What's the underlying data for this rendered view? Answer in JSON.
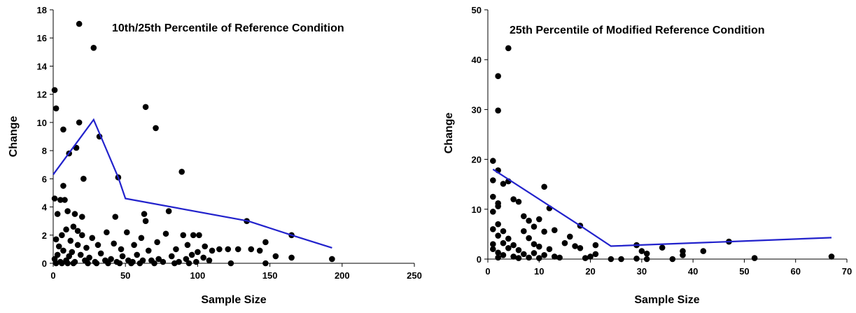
{
  "chart_data": [
    {
      "type": "scatter",
      "title": "10th/25th Percentile of Reference Condition",
      "xlabel": "Sample Size",
      "ylabel": "Change",
      "xlim": [
        0,
        250
      ],
      "ylim": [
        0,
        18
      ],
      "xticks": [
        0,
        50,
        100,
        150,
        200,
        250
      ],
      "yticks": [
        0,
        2,
        4,
        6,
        8,
        10,
        12,
        14,
        16,
        18
      ],
      "grid": false,
      "colors": {
        "points": "#000000",
        "line": "#2222cc"
      },
      "points": [
        [
          1,
          12.3
        ],
        [
          2,
          11
        ],
        [
          18,
          17
        ],
        [
          28,
          15.3
        ],
        [
          64,
          11.1
        ],
        [
          71,
          9.6
        ],
        [
          18,
          10
        ],
        [
          7,
          9.5
        ],
        [
          32,
          9
        ],
        [
          11,
          7.8
        ],
        [
          16,
          8.2
        ],
        [
          89,
          6.5
        ],
        [
          21,
          6
        ],
        [
          45,
          6.1
        ],
        [
          7,
          5.5
        ],
        [
          1,
          4.6
        ],
        [
          5,
          4.5
        ],
        [
          8,
          4.5
        ],
        [
          3,
          3.5
        ],
        [
          10,
          3.7
        ],
        [
          15,
          3.5
        ],
        [
          20,
          3.3
        ],
        [
          43,
          3.3
        ],
        [
          63,
          3.5
        ],
        [
          80,
          3.7
        ],
        [
          64,
          3
        ],
        [
          134,
          3
        ],
        [
          165,
          2
        ],
        [
          193,
          0.3
        ],
        [
          2,
          1.7
        ],
        [
          4,
          1.2
        ],
        [
          6,
          2
        ],
        [
          9,
          2.4
        ],
        [
          12,
          1.6
        ],
        [
          14,
          2.6
        ],
        [
          17,
          2.3
        ],
        [
          20,
          2
        ],
        [
          23,
          1.1
        ],
        [
          27,
          1.8
        ],
        [
          31,
          1.3
        ],
        [
          37,
          2.2
        ],
        [
          42,
          1.4
        ],
        [
          47,
          1
        ],
        [
          51,
          2.2
        ],
        [
          56,
          1.3
        ],
        [
          61,
          1.8
        ],
        [
          66,
          0.9
        ],
        [
          72,
          1.5
        ],
        [
          78,
          2.1
        ],
        [
          85,
          1
        ],
        [
          90,
          2
        ],
        [
          93,
          1.3
        ],
        [
          97,
          2
        ],
        [
          101,
          2
        ],
        [
          105,
          1.2
        ],
        [
          110,
          0.9
        ],
        [
          115,
          1
        ],
        [
          121,
          1
        ],
        [
          128,
          1
        ],
        [
          137,
          1
        ],
        [
          143,
          0.9
        ],
        [
          147,
          1.5
        ],
        [
          154,
          0.5
        ],
        [
          165,
          0.4
        ],
        [
          123,
          0
        ],
        [
          147,
          0
        ],
        [
          1,
          0.3
        ],
        [
          3,
          0.6
        ],
        [
          5,
          0.1
        ],
        [
          7,
          0.9
        ],
        [
          9,
          0.2
        ],
        [
          11,
          0.5
        ],
        [
          13,
          0.8
        ],
        [
          15,
          0.1
        ],
        [
          17,
          1.3
        ],
        [
          19,
          0.6
        ],
        [
          22,
          0.2
        ],
        [
          25,
          0.4
        ],
        [
          29,
          0.1
        ],
        [
          33,
          0.7
        ],
        [
          36,
          0.2
        ],
        [
          40,
          0.3
        ],
        [
          44,
          0.1
        ],
        [
          48,
          0.5
        ],
        [
          52,
          0.2
        ],
        [
          55,
          0.1
        ],
        [
          58,
          0.6
        ],
        [
          62,
          0.2
        ],
        [
          68,
          0.2
        ],
        [
          73,
          0.3
        ],
        [
          76,
          0.1
        ],
        [
          82,
          0.5
        ],
        [
          87,
          0.1
        ],
        [
          92,
          0.3
        ],
        [
          96,
          0.6
        ],
        [
          99,
          0.1
        ],
        [
          104,
          0.4
        ],
        [
          108,
          0.2
        ],
        [
          2,
          0
        ],
        [
          6,
          0
        ],
        [
          10,
          0
        ],
        [
          14,
          0
        ],
        [
          24,
          0
        ],
        [
          30,
          0
        ],
        [
          38,
          0
        ],
        [
          46,
          0
        ],
        [
          54,
          0
        ],
        [
          60,
          0
        ],
        [
          70,
          0
        ],
        [
          84,
          0
        ],
        [
          94,
          0
        ],
        [
          100,
          0.8
        ]
      ],
      "line": [
        [
          0,
          6.3
        ],
        [
          28,
          10.2
        ],
        [
          33,
          9
        ],
        [
          45,
          6.1
        ],
        [
          50,
          4.6
        ],
        [
          135,
          3
        ],
        [
          165,
          2
        ],
        [
          193,
          1.1
        ]
      ]
    },
    {
      "type": "scatter",
      "title": "25th Percentile of Modified Reference Condition",
      "xlabel": "Sample Size",
      "ylabel": "Change",
      "xlim": [
        0,
        70
      ],
      "ylim": [
        0,
        50
      ],
      "xticks": [
        0,
        10,
        20,
        30,
        40,
        50,
        60,
        70
      ],
      "yticks": [
        0,
        10,
        20,
        30,
        40,
        50
      ],
      "grid": false,
      "colors": {
        "points": "#000000",
        "line": "#2222cc"
      },
      "points": [
        [
          4,
          42.3
        ],
        [
          2,
          36.7
        ],
        [
          2,
          29.8
        ],
        [
          1,
          19.7
        ],
        [
          2,
          17.8
        ],
        [
          1,
          15.8
        ],
        [
          3,
          15.1
        ],
        [
          4,
          15.6
        ],
        [
          5,
          12
        ],
        [
          1,
          12.5
        ],
        [
          2,
          11.2
        ],
        [
          6,
          11.5
        ],
        [
          11,
          14.5
        ],
        [
          2,
          10.6
        ],
        [
          1,
          9.5
        ],
        [
          7,
          8.6
        ],
        [
          8,
          7.7
        ],
        [
          10,
          8
        ],
        [
          9,
          6.5
        ],
        [
          11,
          5.5
        ],
        [
          12,
          10.2
        ],
        [
          13,
          5.8
        ],
        [
          2,
          7
        ],
        [
          3,
          5.6
        ],
        [
          7,
          5.6
        ],
        [
          1,
          6
        ],
        [
          2,
          4.7
        ],
        [
          4,
          4.1
        ],
        [
          5,
          2.8
        ],
        [
          8,
          4.2
        ],
        [
          9,
          3
        ],
        [
          10,
          2.5
        ],
        [
          12,
          2
        ],
        [
          15,
          3.2
        ],
        [
          16,
          4.5
        ],
        [
          17,
          2.6
        ],
        [
          18,
          6.7
        ],
        [
          18,
          2.2
        ],
        [
          21,
          2.8
        ],
        [
          21,
          1
        ],
        [
          1,
          3
        ],
        [
          3,
          3.2
        ],
        [
          4,
          2.2
        ],
        [
          6,
          1.8
        ],
        [
          7,
          1
        ],
        [
          9,
          1.2
        ],
        [
          11,
          0.8
        ],
        [
          13,
          0.5
        ],
        [
          1,
          2
        ],
        [
          2,
          1.3
        ],
        [
          2,
          0.3
        ],
        [
          3,
          0.8
        ],
        [
          5,
          0.5
        ],
        [
          6,
          0.2
        ],
        [
          8,
          0.3
        ],
        [
          10,
          0.2
        ],
        [
          14,
          0.3
        ],
        [
          19,
          0.2
        ],
        [
          20,
          0.5
        ],
        [
          24,
          0
        ],
        [
          26,
          0
        ],
        [
          29,
          2.8
        ],
        [
          29,
          0.1
        ],
        [
          30,
          1.6
        ],
        [
          31,
          1.1
        ],
        [
          31,
          0
        ],
        [
          34,
          2.3
        ],
        [
          38,
          1.6
        ],
        [
          38,
          0.8
        ],
        [
          42,
          1.6
        ],
        [
          47,
          3.5
        ],
        [
          52,
          0.2
        ],
        [
          67,
          0.5
        ],
        [
          36,
          0
        ]
      ],
      "line": [
        [
          1,
          18
        ],
        [
          18,
          6.7
        ],
        [
          24,
          2.6
        ],
        [
          47,
          3.5
        ],
        [
          67,
          4.3
        ]
      ]
    }
  ]
}
